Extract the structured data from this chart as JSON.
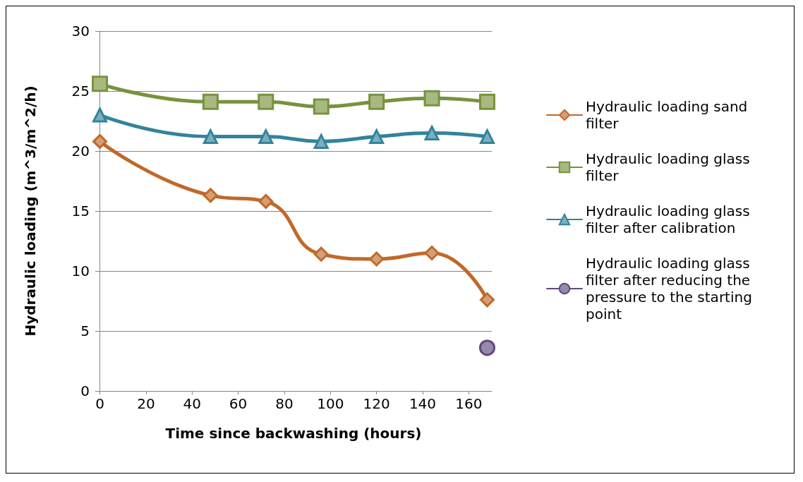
{
  "chart_data": {
    "type": "line",
    "xlabel": "Time since backwashing (hours)",
    "ylabel": "Hydraulic loading (m^3/m^2/h)",
    "x": [
      0,
      48,
      72,
      96,
      120,
      144,
      168
    ],
    "series": [
      {
        "name": "Hydraulic loading sand filter",
        "color": "#c0692a",
        "marker": "diamond",
        "values": [
          20.8,
          16.3,
          15.8,
          11.4,
          11.0,
          11.5,
          7.6
        ]
      },
      {
        "name": "Hydraulic loading glass filter",
        "color": "#77933c",
        "marker": "square",
        "values": [
          25.6,
          24.1,
          24.1,
          23.7,
          24.1,
          24.4,
          24.1
        ]
      },
      {
        "name": "Hydraulic loading glass filter after calibration",
        "color": "#31849b",
        "marker": "triangle",
        "values": [
          23.0,
          21.2,
          21.2,
          20.8,
          21.2,
          21.5,
          21.2
        ]
      },
      {
        "name": "Hydraulic loading glass filter after reducing the pressure to the starting point",
        "color": "#5f497a",
        "marker": "circle",
        "x": [
          168
        ],
        "values": [
          3.6
        ]
      }
    ],
    "xlim": [
      -2,
      170
    ],
    "xticks": [
      0,
      20,
      40,
      60,
      80,
      100,
      120,
      140,
      160
    ],
    "ylim": [
      0,
      30
    ],
    "yticks": [
      0,
      5,
      10,
      15,
      20,
      25,
      30
    ],
    "grid": "y",
    "legend": "right",
    "line_style": "solid"
  }
}
